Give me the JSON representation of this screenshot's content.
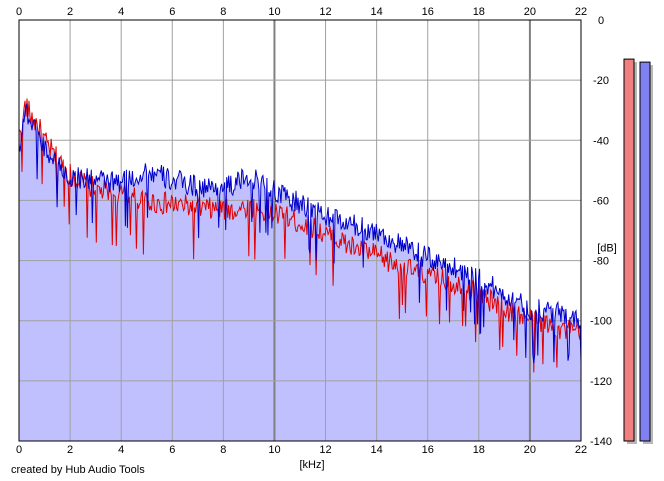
{
  "chart_data": {
    "type": "line",
    "title": "",
    "xlabel": "[kHz]",
    "ylabel": "[dB]",
    "xlim": [
      0,
      22
    ],
    "ylim": [
      -140,
      0
    ],
    "x_ticks": [
      0,
      2,
      4,
      6,
      8,
      10,
      12,
      14,
      16,
      18,
      20,
      22
    ],
    "y_ticks": [
      0,
      -20,
      -40,
      -60,
      -80,
      -100,
      -120,
      -140
    ],
    "x_tick_labels": [
      "0",
      "2",
      "4",
      "6",
      "8",
      "10",
      "12",
      "14",
      "16",
      "18",
      "20",
      "22"
    ],
    "y_tick_labels": [
      "0",
      "-20",
      "-40",
      "-60",
      "-80",
      "-100",
      "-120",
      "-140"
    ],
    "grid": true,
    "fill_color": "#c0c0ff",
    "series": [
      {
        "color": "#e00000",
        "x": [
          0,
          0.25,
          0.5,
          0.75,
          1,
          1.5,
          2,
          3,
          4,
          5,
          6,
          7,
          8,
          9,
          10,
          11,
          12,
          13,
          14,
          15,
          16,
          17,
          18,
          19,
          20,
          21,
          22
        ],
        "y": [
          -38,
          -28,
          -32,
          -35,
          -40,
          -46,
          -51,
          -56,
          -58,
          -60,
          -61,
          -62,
          -63,
          -62,
          -64,
          -67,
          -71,
          -75,
          -78,
          -82,
          -85,
          -87,
          -91,
          -96,
          -99,
          -102,
          -104
        ]
      },
      {
        "color": "#0000cc",
        "x": [
          0,
          0.25,
          0.5,
          0.75,
          1,
          1.5,
          2,
          3,
          4,
          5,
          6,
          7,
          8,
          9,
          10,
          11,
          12,
          13,
          14,
          15,
          16,
          17,
          18,
          19,
          20,
          21,
          22
        ],
        "y": [
          -42,
          -29,
          -34,
          -38,
          -42,
          -48,
          -52,
          -53,
          -54,
          -50,
          -53,
          -55,
          -56,
          -52,
          -57,
          -61,
          -65,
          -68,
          -70,
          -75,
          -79,
          -82,
          -86,
          -91,
          -96,
          -97,
          -100
        ]
      }
    ],
    "level_meters": [
      {
        "color": "#f08080",
        "level_db": -13
      },
      {
        "color": "#8080f0",
        "level_db": -14
      }
    ],
    "credit": "created by Hub Audio Tools"
  }
}
